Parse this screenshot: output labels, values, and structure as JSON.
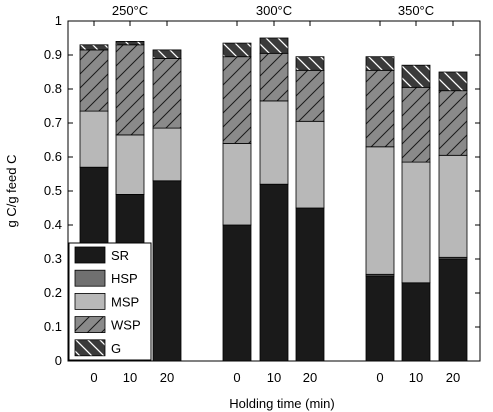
{
  "chart_data": {
    "type": "bar",
    "stacked": true,
    "xlabel": "Holding time (min)",
    "ylabel": "g C/g feed C",
    "ylim": [
      0,
      1
    ],
    "yticks": [
      "0",
      "0.1",
      "0.2",
      "0.3",
      "0.4",
      "0.5",
      "0.6",
      "0.7",
      "0.8",
      "0.9",
      "1"
    ],
    "groups": [
      {
        "label": "250°C",
        "categories": [
          "0",
          "10",
          "20"
        ]
      },
      {
        "label": "300°C",
        "categories": [
          "0",
          "10",
          "20"
        ]
      },
      {
        "label": "350°C",
        "categories": [
          "0",
          "10",
          "20"
        ]
      }
    ],
    "series": [
      {
        "name": "SR",
        "color": "#1a1a1a",
        "pattern": "solid",
        "values": [
          0.57,
          0.49,
          0.53,
          0.4,
          0.52,
          0.45,
          0.25,
          0.23,
          0.3
        ]
      },
      {
        "name": "HSP",
        "color": "#707070",
        "pattern": "solid",
        "values": [
          0.0,
          0.0,
          0.0,
          0.0,
          0.0,
          0.0,
          0.005,
          0.0,
          0.005
        ]
      },
      {
        "name": "MSP",
        "color": "#b8b8b8",
        "pattern": "solid",
        "values": [
          0.165,
          0.175,
          0.155,
          0.24,
          0.245,
          0.255,
          0.375,
          0.355,
          0.3
        ]
      },
      {
        "name": "WSP",
        "color": "#8a8a8a",
        "pattern": "hatch-forward",
        "values": [
          0.18,
          0.265,
          0.205,
          0.255,
          0.14,
          0.15,
          0.225,
          0.22,
          0.19
        ]
      },
      {
        "name": "G",
        "color": "#3a3a3a",
        "pattern": "hatch-back",
        "values": [
          0.015,
          0.01,
          0.025,
          0.04,
          0.045,
          0.04,
          0.04,
          0.065,
          0.055
        ]
      }
    ],
    "legend_position": "bottom-left",
    "grid": false
  }
}
